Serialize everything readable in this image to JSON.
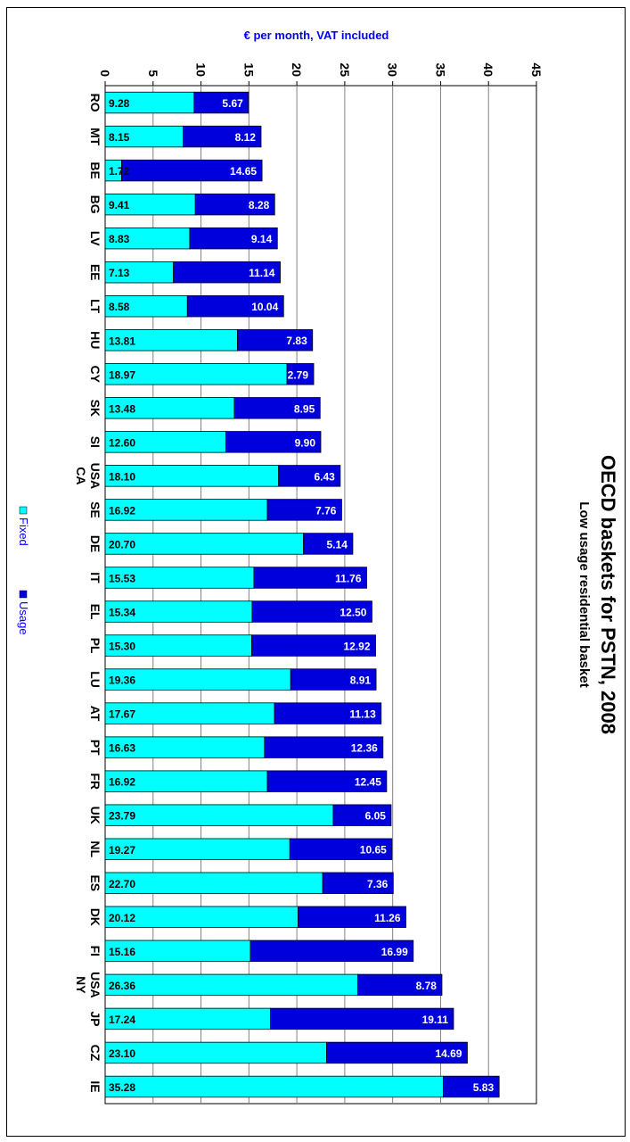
{
  "chart_data": {
    "type": "bar",
    "orientation": "horizontal-stacked",
    "title": "OECD baskets for PSTN, 2008",
    "subtitle": "Low usage residential basket",
    "xlabel": "€ per month, VAT included",
    "xlim": [
      0,
      45
    ],
    "xticks": [
      0,
      5,
      10,
      15,
      20,
      25,
      30,
      35,
      40,
      45
    ],
    "grid": true,
    "legend_position": "bottom",
    "categories": [
      "RO",
      "MT",
      "BE",
      "BG",
      "LV",
      "EE",
      "LT",
      "HU",
      "CY",
      "SK",
      "SI",
      "USA CA",
      "SE",
      "DE",
      "IT",
      "EL",
      "PL",
      "LU",
      "AT",
      "PT",
      "FR",
      "UK",
      "NL",
      "ES",
      "DK",
      "FI",
      "USA NY",
      "JP",
      "CZ",
      "IE"
    ],
    "category_lines": [
      [
        "RO"
      ],
      [
        "MT"
      ],
      [
        "BE"
      ],
      [
        "BG"
      ],
      [
        "LV"
      ],
      [
        "EE"
      ],
      [
        "LT"
      ],
      [
        "HU"
      ],
      [
        "CY"
      ],
      [
        "SK"
      ],
      [
        "SI"
      ],
      [
        "USA",
        "CA"
      ],
      [
        "SE"
      ],
      [
        "DE"
      ],
      [
        "IT"
      ],
      [
        "EL"
      ],
      [
        "PL"
      ],
      [
        "LU"
      ],
      [
        "AT"
      ],
      [
        "PT"
      ],
      [
        "FR"
      ],
      [
        "UK"
      ],
      [
        "NL"
      ],
      [
        "ES"
      ],
      [
        "DK"
      ],
      [
        "FI"
      ],
      [
        "USA",
        "NY"
      ],
      [
        "JP"
      ],
      [
        "CZ"
      ],
      [
        "IE"
      ]
    ],
    "series": [
      {
        "name": "Fixed",
        "color": "#00ffff",
        "values": [
          9.28,
          8.15,
          1.72,
          9.41,
          8.83,
          7.13,
          8.58,
          13.81,
          18.97,
          13.48,
          12.6,
          18.1,
          16.92,
          20.7,
          15.53,
          15.34,
          15.3,
          19.36,
          17.67,
          16.63,
          16.92,
          23.79,
          19.27,
          22.7,
          20.12,
          15.16,
          26.36,
          17.24,
          23.1,
          35.28
        ],
        "labels": [
          "9.28",
          "8.15",
          "1.72",
          "9.41",
          "8.83",
          "7.13",
          "8.58",
          "13.81",
          "18.97",
          "13.48",
          "12.60",
          "18.10",
          "16.92",
          "20.70",
          "15.53",
          "15.34",
          "15.30",
          "19.36",
          "17.67",
          "16.63",
          "16.92",
          "23.79",
          "19.27",
          "22.70",
          "20.12",
          "15.16",
          "26.36",
          "17.24",
          "23.10",
          "35.28"
        ]
      },
      {
        "name": "Usage",
        "color": "#0000dd",
        "values": [
          5.67,
          8.12,
          14.65,
          8.28,
          9.14,
          11.14,
          10.04,
          7.83,
          2.79,
          8.95,
          9.9,
          6.43,
          7.76,
          5.14,
          11.76,
          12.5,
          12.92,
          8.91,
          11.13,
          12.36,
          12.45,
          6.05,
          10.65,
          7.36,
          11.26,
          16.99,
          8.78,
          19.11,
          14.69,
          5.83
        ],
        "labels": [
          "5.67",
          "8.12",
          "14.65",
          "8.28",
          "9.14",
          "11.14",
          "10.04",
          "7.83",
          "2.79",
          "8.95",
          "9.90",
          "6.43",
          "7.76",
          "5.14",
          "11.76",
          "12.50",
          "12.92",
          "8.91",
          "11.13",
          "12.36",
          "12.45",
          "6.05",
          "10.65",
          "7.36",
          "11.26",
          "16.99",
          "8.78",
          "19.11",
          "14.69",
          "5.83"
        ]
      }
    ]
  }
}
